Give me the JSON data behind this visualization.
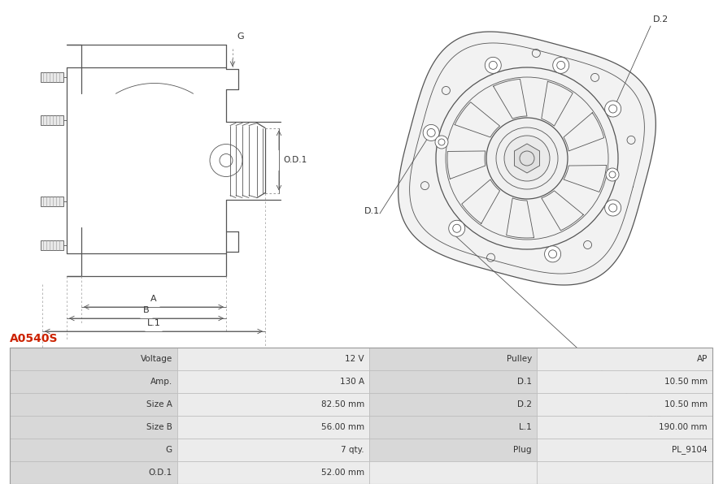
{
  "title": "A0540S",
  "title_color": "#cc2200",
  "bg_color": "#ffffff",
  "line_color": "#555555",
  "dim_color": "#555555",
  "table_rows": [
    [
      "Voltage",
      "12 V",
      "Pulley",
      "AP"
    ],
    [
      "Amp.",
      "130 A",
      "D.1",
      "10.50 mm"
    ],
    [
      "Size A",
      "82.50 mm",
      "D.2",
      "10.50 mm"
    ],
    [
      "Size B",
      "56.00 mm",
      "L.1",
      "190.00 mm"
    ],
    [
      "G",
      "7 qty.",
      "Plug",
      "PL_9104"
    ],
    [
      "O.D.1",
      "52.00 mm",
      "",
      ""
    ]
  ],
  "label_bg": "#d8d8d8",
  "value_bg": "#ececec",
  "font_size_table": 7.5,
  "font_size_title": 10
}
